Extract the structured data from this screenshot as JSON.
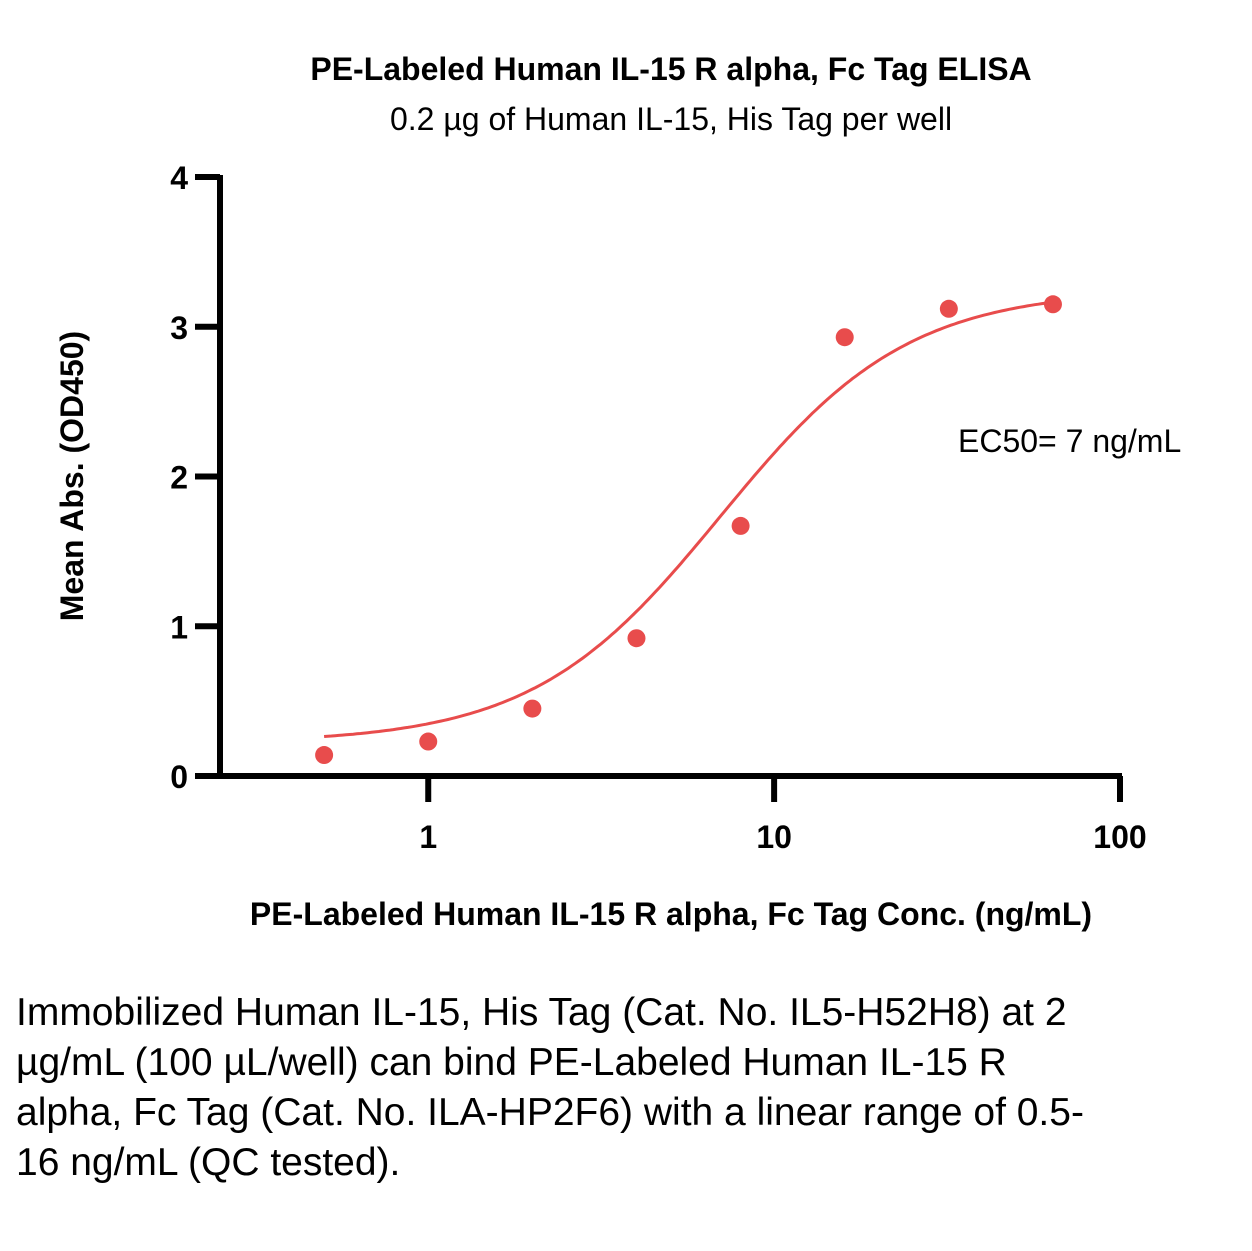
{
  "chart_data": {
    "type": "scatter",
    "title": "PE-Labeled Human IL-15 R alpha, Fc Tag ELISA",
    "subtitle": "0.2 µg of Human IL-15, His Tag per well",
    "xlabel": "PE-Labeled Human IL-15 R alpha, Fc Tag Conc. (ng/mL)",
    "ylabel": "Mean Abs. (OD450)",
    "x_scale": "log",
    "xlim": [
      0.25,
      100
    ],
    "ylim": [
      0,
      4
    ],
    "x_ticks": [
      1,
      10,
      100
    ],
    "x_tick_labels": [
      "1",
      "10",
      "100"
    ],
    "y_ticks": [
      0,
      1,
      2,
      3,
      4
    ],
    "y_tick_labels": [
      "0",
      "1",
      "2",
      "3",
      "4"
    ],
    "grid": false,
    "series": [
      {
        "color": "#e84c4c",
        "x": [
          0.5,
          1,
          2,
          4,
          8,
          16,
          32,
          64
        ],
        "y": [
          0.14,
          0.23,
          0.45,
          0.92,
          1.67,
          2.93,
          3.12,
          3.15
        ],
        "fit": "4PL",
        "fit_params": {
          "bottom": 0.22,
          "top": 3.25,
          "ec50": 7,
          "hill": 1.6
        }
      }
    ],
    "annotations": [
      {
        "text": "EC50= 7 ng/mL"
      }
    ]
  },
  "caption": "Immobilized Human IL-15, His Tag (Cat. No. IL5-H52H8) at 2 µg/mL (100 µL/well) can bind PE-Labeled Human IL-15 R alpha, Fc Tag (Cat. No. ILA-HP2F6) with a linear range of 0.5-16 ng/mL (QC tested)."
}
